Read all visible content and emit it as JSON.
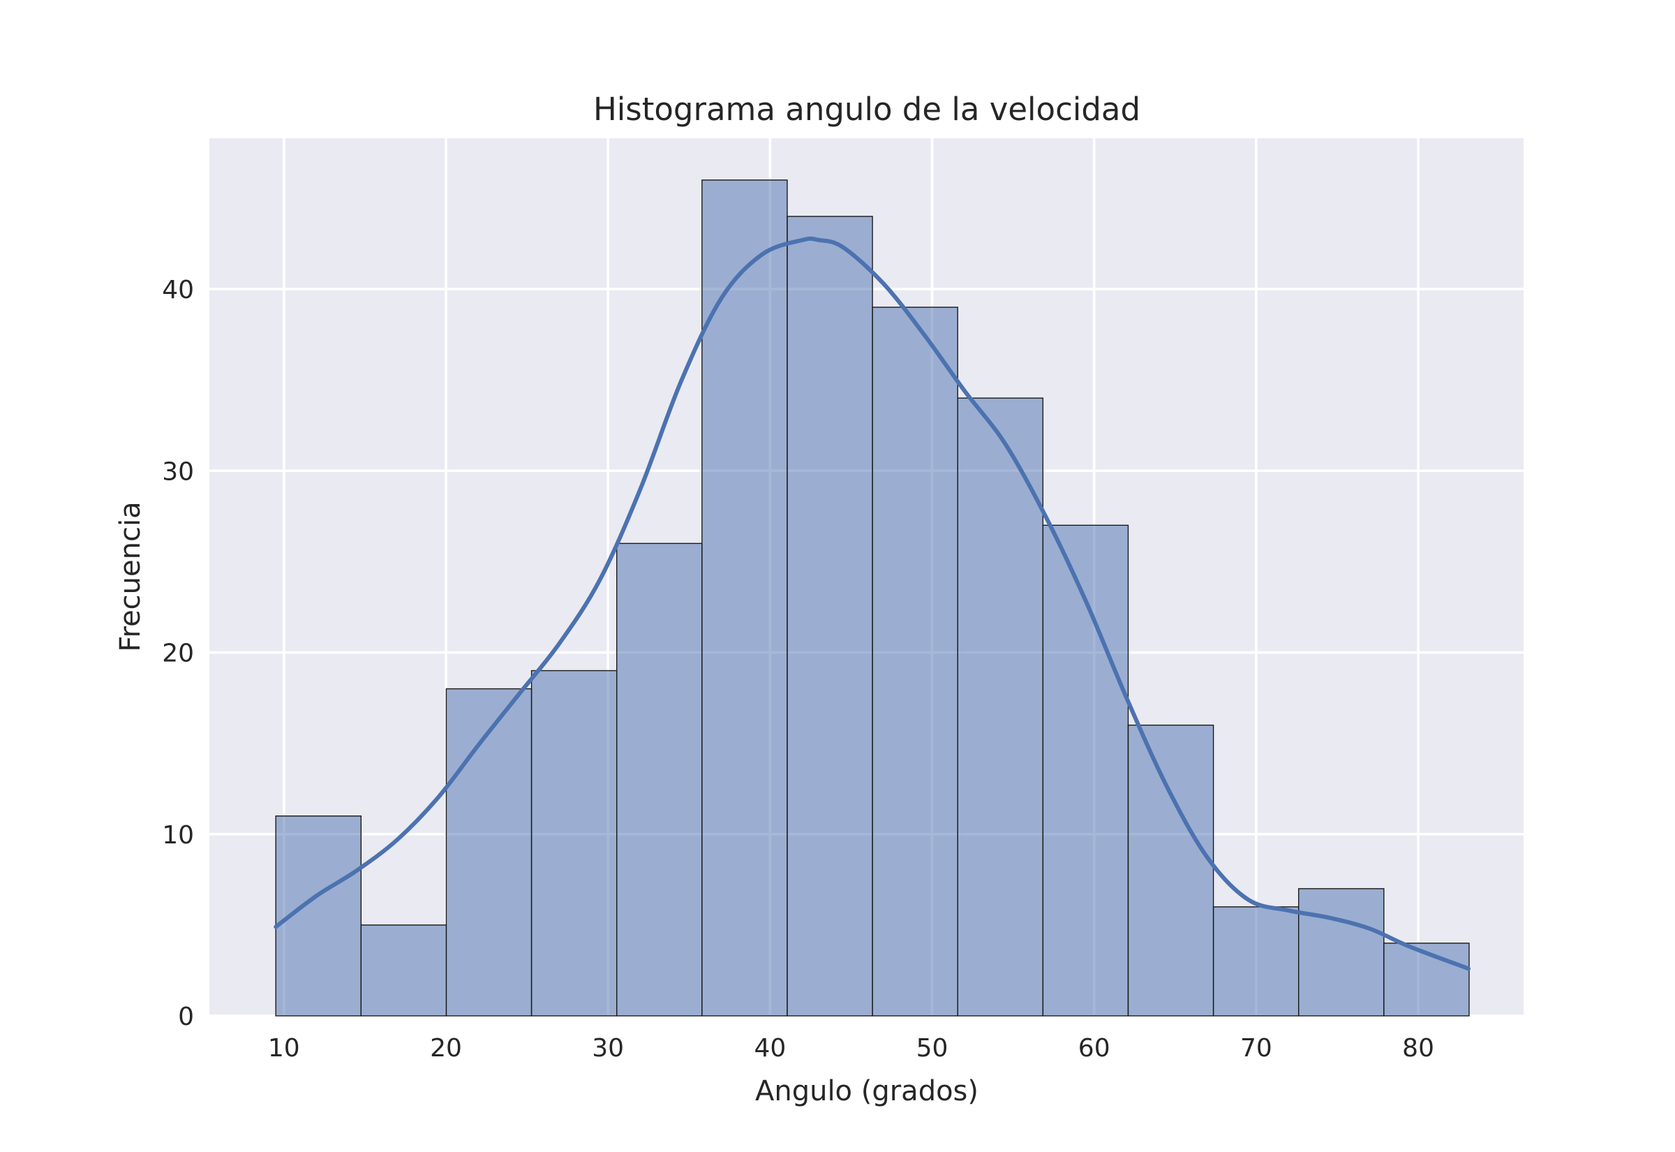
{
  "chart_data": {
    "type": "bar",
    "title": "Histograma angulo de la velocidad",
    "xlabel": "Angulo (grados)",
    "ylabel": "Frecuencia",
    "xlim": [
      5.4,
      86.5
    ],
    "ylim": [
      0,
      48.3
    ],
    "xticks": [
      10,
      20,
      30,
      40,
      50,
      60,
      70,
      80
    ],
    "yticks": [
      0,
      10,
      20,
      30,
      40
    ],
    "grid": true,
    "bin_edges": [
      9.5,
      14.76,
      20.02,
      25.28,
      30.54,
      35.8,
      41.06,
      46.32,
      51.58,
      56.84,
      62.1,
      67.36,
      72.62,
      77.88,
      83.14
    ],
    "values": [
      11,
      5,
      18,
      19,
      26,
      46,
      44,
      39,
      34,
      27,
      16,
      6,
      7,
      4
    ],
    "kde": {
      "x": [
        9.5,
        12,
        14.5,
        17,
        19.5,
        22,
        24.5,
        27,
        29.5,
        32,
        34.5,
        37,
        39.5,
        42,
        43,
        44.5,
        47,
        49.5,
        52,
        54.5,
        57,
        59.5,
        62,
        64.5,
        67,
        69.5,
        72,
        74.5,
        77,
        79.5,
        83.1
      ],
      "y": [
        4.9,
        6.6,
        8.0,
        9.7,
        12.0,
        14.9,
        17.7,
        20.5,
        24.0,
        29.0,
        34.9,
        39.5,
        41.9,
        42.7,
        42.7,
        42.3,
        40.3,
        37.5,
        34.4,
        31.5,
        27.5,
        22.8,
        17.5,
        12.6,
        8.7,
        6.4,
        5.8,
        5.4,
        4.8,
        3.8,
        2.6
      ]
    }
  }
}
